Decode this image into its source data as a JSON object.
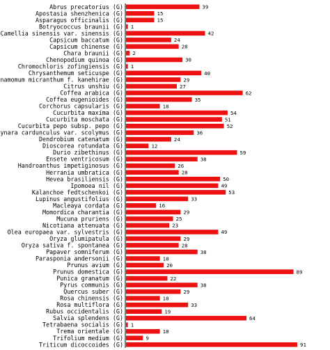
{
  "chart_data": {
    "type": "bar",
    "orientation": "horizontal",
    "bar_color": "#ee1111",
    "axis_color": "#000000",
    "title": "",
    "xlabel": "",
    "ylabel": "",
    "xlim": [
      0,
      91
    ],
    "categories": [
      "Abrus precatorius (G)",
      "Apostasia shenzhenica (G)",
      "Asparagus officinalis (G)",
      "Botryococcus braunii (G)",
      "Camellia sinensis var. sinensis (G)",
      "Capsicum baccatum (G)",
      "Capsicum chinense (G)",
      "Chara braunii (G)",
      "Chenopodium quinoa (G)",
      "Chromochloris zofingiensis (G)",
      "Chrysanthemum seticuspe (G)",
      "Cinnamomum micranthum f. kanehirae (G)",
      "Citrus unshiu (G)",
      "Coffea arabica (G)",
      "Coffea eugenioides (G)",
      "Corchorus capsularis (G)",
      "Cucurbita maxima (G)",
      "Cucurbita moschata (G)",
      "Cucurbita pepo subsp. pepo (G)",
      "Cynara cardunculus var. scolymus (G)",
      "Dendrobium catenatum (G)",
      "Dioscorea rotundata (G)",
      "Durio zibethinus (G)",
      "Ensete ventricosum (G)",
      "Handroanthus impetiginosus (G)",
      "Herrania umbratica (G)",
      "Hevea brasiliensis (G)",
      "Ipomoea nil (G)",
      "Kalanchoe fedtschenkoi (G)",
      "Lupinus angustifolius (G)",
      "Macleaya cordata (G)",
      "Momordica charantia (G)",
      "Mucuna pruriens (G)",
      "Nicotiana attenuata (G)",
      "Olea europaea var. sylvestris (G)",
      "Oryza glumipatula (G)",
      "Oryza sativa f. spontanea (G)",
      "Papaver somniferum (G)",
      "Parasponia andersonii (G)",
      "Prunus avium (G)",
      "Prunus domestica (G)",
      "Punica granatum (G)",
      "Pyrus communis (G)",
      "Quercus suber (G)",
      "Rosa chinensis (G)",
      "Rosa multiflora (G)",
      "Rubus occidentalis (G)",
      "Salvia splendens (G)",
      "Tetrabaena socialis (G)",
      "Trema orientale (G)",
      "Trifolium medium (G)",
      "Triticum dicoccoides (G)"
    ],
    "values": [
      39,
      15,
      15,
      1,
      42,
      24,
      28,
      2,
      30,
      1,
      40,
      29,
      27,
      62,
      35,
      18,
      54,
      51,
      52,
      36,
      24,
      12,
      59,
      38,
      26,
      28,
      50,
      49,
      53,
      33,
      16,
      29,
      25,
      23,
      49,
      29,
      28,
      38,
      18,
      20,
      89,
      22,
      38,
      29,
      18,
      33,
      19,
      64,
      1,
      18,
      9,
      91
    ]
  }
}
